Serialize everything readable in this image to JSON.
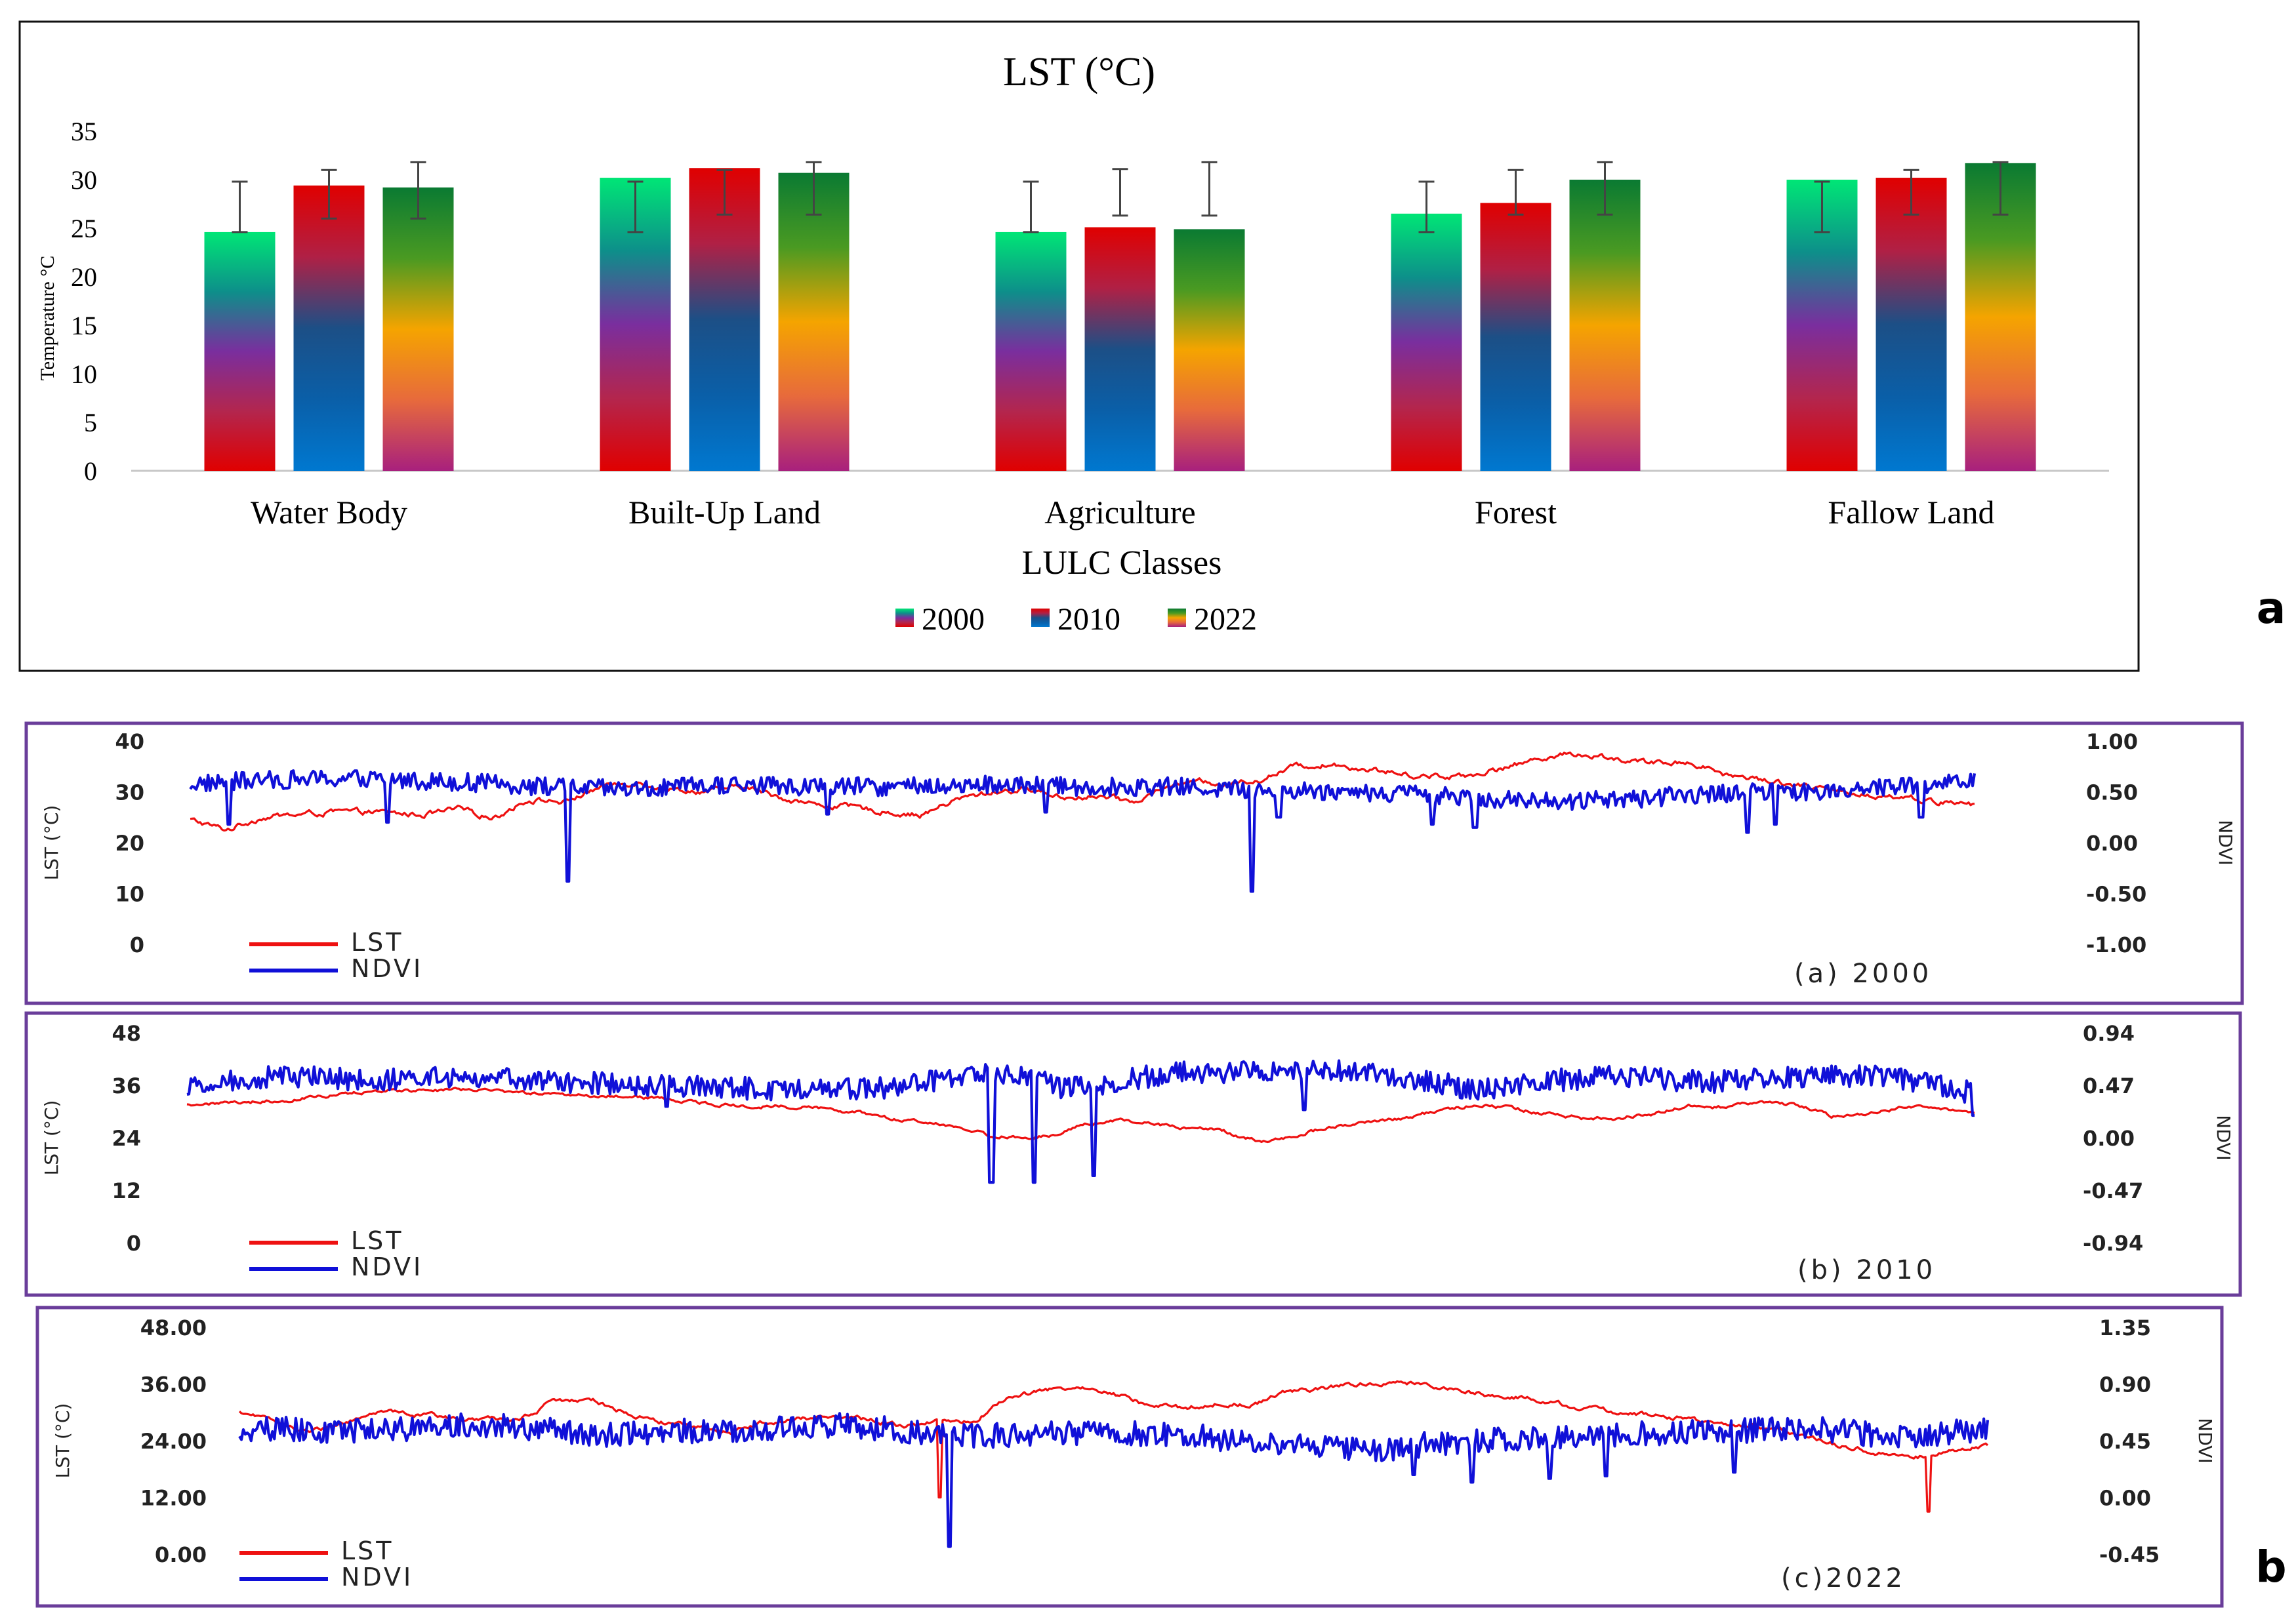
{
  "panel_labels": {
    "a": "a",
    "b": "b"
  },
  "colors": {
    "lst": "#ee1111",
    "ndvi": "#1010d8",
    "frame_b": "#6a3d9a",
    "frame_a": "#111111",
    "errorbar": "#444444"
  },
  "gradients": {
    "2000": [
      "#00e676",
      "#0d8f8a",
      "#7a2e9e",
      "#b3264e",
      "#e00000"
    ],
    "2010": [
      "#e00000",
      "#b02045",
      "#1c4f86",
      "#0a5fa8",
      "#0078d0"
    ],
    "2022": [
      "#0a7a32",
      "#4a9a22",
      "#f5a400",
      "#e76a3c",
      "#a8207d"
    ]
  },
  "chart_data": [
    {
      "id": "lst-bar",
      "type": "bar",
      "title": "LST (°C)",
      "xlabel": "LULC Classes",
      "ylabel": "Temperature °C",
      "ylim": [
        0,
        35
      ],
      "yticks": [
        0,
        5,
        10,
        15,
        20,
        25,
        30,
        35
      ],
      "categories": [
        "Water Body",
        "Built-Up Land",
        "Agriculture",
        "Forest",
        "Fallow Land"
      ],
      "legend_position": "bottom",
      "series": [
        {
          "name": "2000",
          "values": [
            24.6,
            30.2,
            24.6,
            26.5,
            30.0
          ],
          "err_low": [
            24.6,
            24.6,
            24.6,
            24.6,
            24.6
          ],
          "err_high": [
            29.8,
            29.8,
            29.8,
            29.8,
            29.8
          ]
        },
        {
          "name": "2010",
          "values": [
            29.4,
            31.2,
            25.1,
            27.6,
            30.2
          ],
          "err_low": [
            26.0,
            26.4,
            26.3,
            26.4,
            26.4
          ],
          "err_high": [
            31.0,
            31.0,
            31.1,
            31.0,
            31.0
          ]
        },
        {
          "name": "2022",
          "values": [
            29.2,
            30.7,
            24.9,
            30.0,
            31.7
          ],
          "err_low": [
            26.0,
            26.4,
            26.3,
            26.4,
            26.4
          ],
          "err_high": [
            31.8,
            31.8,
            31.8,
            31.8,
            31.8
          ]
        }
      ]
    },
    {
      "id": "ts-2000",
      "type": "line",
      "caption": "(a) 2000",
      "ylabel_left": "LST (°C)",
      "ylabel_right": "NDVI",
      "left_ticks": [
        "0",
        "10",
        "20",
        "30",
        "40"
      ],
      "right_ticks": [
        "-1.00",
        "-0.50",
        "0.00",
        "0.50",
        "1.00"
      ],
      "left_range": [
        0,
        40
      ],
      "right_range": [
        -1,
        1
      ],
      "legend": [
        "LST",
        "NDVI"
      ],
      "lst_profile": [
        [
          0,
          24.5
        ],
        [
          0.02,
          22.5
        ],
        [
          0.04,
          25.0
        ],
        [
          0.06,
          25.5
        ],
        [
          0.08,
          26.0
        ],
        [
          0.1,
          26.0
        ],
        [
          0.13,
          25.5
        ],
        [
          0.15,
          26.5
        ],
        [
          0.17,
          25.0
        ],
        [
          0.19,
          28.5
        ],
        [
          0.21,
          28.0
        ],
        [
          0.23,
          31.0
        ],
        [
          0.25,
          32.0
        ],
        [
          0.27,
          30.5
        ],
        [
          0.29,
          30.0
        ],
        [
          0.31,
          31.0
        ],
        [
          0.33,
          29.0
        ],
        [
          0.35,
          27.5
        ],
        [
          0.37,
          27.0
        ],
        [
          0.39,
          26.0
        ],
        [
          0.41,
          25.5
        ],
        [
          0.43,
          28.5
        ],
        [
          0.45,
          30.0
        ],
        [
          0.47,
          30.5
        ],
        [
          0.49,
          29.0
        ],
        [
          0.51,
          29.0
        ],
        [
          0.53,
          28.0
        ],
        [
          0.55,
          31.5
        ],
        [
          0.57,
          32.0
        ],
        [
          0.58,
          31.5
        ],
        [
          0.6,
          32.5
        ],
        [
          0.62,
          35.0
        ],
        [
          0.64,
          35.5
        ],
        [
          0.66,
          34.5
        ],
        [
          0.68,
          33.5
        ],
        [
          0.7,
          33.0
        ],
        [
          0.72,
          33.5
        ],
        [
          0.74,
          35.0
        ],
        [
          0.76,
          37.0
        ],
        [
          0.78,
          37.5
        ],
        [
          0.8,
          36.5
        ],
        [
          0.82,
          35.5
        ],
        [
          0.84,
          36.0
        ],
        [
          0.86,
          33.5
        ],
        [
          0.88,
          32.5
        ],
        [
          0.9,
          31.5
        ],
        [
          0.92,
          30.0
        ],
        [
          0.94,
          29.5
        ],
        [
          0.96,
          29.0
        ],
        [
          0.98,
          28.0
        ],
        [
          1.0,
          27.5
        ]
      ],
      "lst_noise": 1.4,
      "ndvi_profile": [
        [
          0,
          0.58
        ],
        [
          0.05,
          0.62
        ],
        [
          0.1,
          0.63
        ],
        [
          0.15,
          0.6
        ],
        [
          0.2,
          0.55
        ],
        [
          0.25,
          0.52
        ],
        [
          0.3,
          0.57
        ],
        [
          0.35,
          0.55
        ],
        [
          0.4,
          0.55
        ],
        [
          0.45,
          0.57
        ],
        [
          0.5,
          0.55
        ],
        [
          0.55,
          0.55
        ],
        [
          0.6,
          0.52
        ],
        [
          0.65,
          0.5
        ],
        [
          0.7,
          0.47
        ],
        [
          0.72,
          0.45
        ],
        [
          0.75,
          0.4
        ],
        [
          0.8,
          0.42
        ],
        [
          0.85,
          0.48
        ],
        [
          0.9,
          0.5
        ],
        [
          0.95,
          0.55
        ],
        [
          1.0,
          0.6
        ]
      ],
      "ndvi_noise": 0.09,
      "ndvi_spikes": [
        [
          0.022,
          0.18
        ],
        [
          0.111,
          0.2
        ],
        [
          0.212,
          -0.38
        ],
        [
          0.357,
          0.28
        ],
        [
          0.479,
          0.3
        ],
        [
          0.595,
          -0.48
        ],
        [
          0.61,
          0.25
        ],
        [
          0.696,
          0.18
        ],
        [
          0.72,
          0.15
        ],
        [
          0.873,
          0.1
        ],
        [
          0.888,
          0.18
        ],
        [
          0.97,
          0.25
        ]
      ]
    },
    {
      "id": "ts-2010",
      "type": "line",
      "caption": "(b) 2010",
      "ylabel_left": "LST (°C)",
      "ylabel_right": "NDVI",
      "left_ticks": [
        "0",
        "12",
        "24",
        "36",
        "48"
      ],
      "right_ticks": [
        "-0.94",
        "-0.47",
        "0.00",
        "0.47",
        "0.94"
      ],
      "left_range": [
        0,
        48
      ],
      "right_range": [
        -0.94,
        0.94
      ],
      "legend": [
        "LST",
        "NDVI"
      ],
      "lst_profile": [
        [
          0,
          31.5
        ],
        [
          0.05,
          32.5
        ],
        [
          0.1,
          34.5
        ],
        [
          0.15,
          35.0
        ],
        [
          0.2,
          34.0
        ],
        [
          0.25,
          33.5
        ],
        [
          0.3,
          31.5
        ],
        [
          0.35,
          31.0
        ],
        [
          0.38,
          29.5
        ],
        [
          0.4,
          28.0
        ],
        [
          0.43,
          26.5
        ],
        [
          0.45,
          24.5
        ],
        [
          0.47,
          24.0
        ],
        [
          0.49,
          25.0
        ],
        [
          0.5,
          27.0
        ],
        [
          0.52,
          28.0
        ],
        [
          0.54,
          27.5
        ],
        [
          0.55,
          26.5
        ],
        [
          0.57,
          26.0
        ],
        [
          0.58,
          25.5
        ],
        [
          0.6,
          23.0
        ],
        [
          0.62,
          24.5
        ],
        [
          0.64,
          26.5
        ],
        [
          0.66,
          27.5
        ],
        [
          0.68,
          28.5
        ],
        [
          0.7,
          30.0
        ],
        [
          0.72,
          31.5
        ],
        [
          0.74,
          31.0
        ],
        [
          0.76,
          29.5
        ],
        [
          0.78,
          28.5
        ],
        [
          0.8,
          28.5
        ],
        [
          0.82,
          29.5
        ],
        [
          0.84,
          31.5
        ],
        [
          0.86,
          31.0
        ],
        [
          0.88,
          32.5
        ],
        [
          0.9,
          31.5
        ],
        [
          0.92,
          29.0
        ],
        [
          0.94,
          29.5
        ],
        [
          0.96,
          31.0
        ],
        [
          0.98,
          31.0
        ],
        [
          1.0,
          29.5
        ]
      ],
      "lst_noise": 1.0,
      "ndvi_profile": [
        [
          0,
          0.45
        ],
        [
          0.05,
          0.55
        ],
        [
          0.1,
          0.52
        ],
        [
          0.15,
          0.55
        ],
        [
          0.2,
          0.5
        ],
        [
          0.25,
          0.48
        ],
        [
          0.3,
          0.45
        ],
        [
          0.35,
          0.42
        ],
        [
          0.4,
          0.45
        ],
        [
          0.43,
          0.55
        ],
        [
          0.45,
          0.6
        ],
        [
          0.47,
          0.55
        ],
        [
          0.49,
          0.45
        ],
        [
          0.52,
          0.5
        ],
        [
          0.55,
          0.58
        ],
        [
          0.6,
          0.6
        ],
        [
          0.65,
          0.6
        ],
        [
          0.7,
          0.5
        ],
        [
          0.72,
          0.42
        ],
        [
          0.75,
          0.5
        ],
        [
          0.8,
          0.55
        ],
        [
          0.85,
          0.5
        ],
        [
          0.9,
          0.55
        ],
        [
          0.95,
          0.55
        ],
        [
          1.0,
          0.4
        ]
      ],
      "ndvi_noise": 0.1,
      "ndvi_spikes": [
        [
          0.45,
          -0.4
        ],
        [
          0.474,
          -0.4
        ],
        [
          0.507,
          -0.34
        ],
        [
          0.268,
          0.28
        ],
        [
          0.625,
          0.25
        ],
        [
          0.999,
          0.2
        ]
      ]
    },
    {
      "id": "ts-2022",
      "type": "line",
      "caption": "(c)2022",
      "ylabel_left": "LST (°C)",
      "ylabel_right": "NDVI",
      "left_ticks": [
        "0.00",
        "12.00",
        "24.00",
        "36.00",
        "48.00"
      ],
      "right_ticks": [
        "-0.45",
        "0.00",
        "0.45",
        "0.90",
        "1.35"
      ],
      "left_range": [
        0,
        48
      ],
      "right_range": [
        -0.45,
        1.35
      ],
      "legend": [
        "LST",
        "NDVI"
      ],
      "lst_profile": [
        [
          0,
          30.0
        ],
        [
          0.04,
          26.0
        ],
        [
          0.08,
          30.0
        ],
        [
          0.12,
          29.0
        ],
        [
          0.16,
          28.0
        ],
        [
          0.18,
          32.5
        ],
        [
          0.2,
          33.0
        ],
        [
          0.22,
          30.0
        ],
        [
          0.24,
          28.0
        ],
        [
          0.26,
          27.0
        ],
        [
          0.28,
          25.5
        ],
        [
          0.3,
          28.0
        ],
        [
          0.32,
          28.5
        ],
        [
          0.34,
          29.0
        ],
        [
          0.36,
          28.5
        ],
        [
          0.38,
          27.0
        ],
        [
          0.4,
          28.0
        ],
        [
          0.42,
          28.0
        ],
        [
          0.44,
          33.5
        ],
        [
          0.46,
          34.5
        ],
        [
          0.48,
          35.5
        ],
        [
          0.5,
          34.0
        ],
        [
          0.52,
          31.5
        ],
        [
          0.54,
          31.0
        ],
        [
          0.56,
          32.0
        ],
        [
          0.58,
          31.5
        ],
        [
          0.6,
          34.5
        ],
        [
          0.62,
          35.0
        ],
        [
          0.64,
          36.0
        ],
        [
          0.66,
          36.5
        ],
        [
          0.68,
          35.5
        ],
        [
          0.7,
          34.5
        ],
        [
          0.72,
          33.5
        ],
        [
          0.74,
          33.0
        ],
        [
          0.76,
          31.5
        ],
        [
          0.78,
          30.5
        ],
        [
          0.8,
          29.5
        ],
        [
          0.82,
          29.0
        ],
        [
          0.84,
          28.0
        ],
        [
          0.86,
          27.5
        ],
        [
          0.88,
          26.5
        ],
        [
          0.9,
          24.5
        ],
        [
          0.92,
          22.5
        ],
        [
          0.94,
          21.5
        ],
        [
          0.96,
          20.5
        ],
        [
          0.98,
          22.0
        ],
        [
          1.0,
          23.0
        ]
      ],
      "lst_noise": 1.2,
      "ndvi_profile": [
        [
          0,
          0.55
        ],
        [
          0.05,
          0.53
        ],
        [
          0.1,
          0.55
        ],
        [
          0.15,
          0.58
        ],
        [
          0.2,
          0.5
        ],
        [
          0.25,
          0.52
        ],
        [
          0.3,
          0.55
        ],
        [
          0.35,
          0.57
        ],
        [
          0.4,
          0.5
        ],
        [
          0.42,
          0.48
        ],
        [
          0.45,
          0.5
        ],
        [
          0.5,
          0.52
        ],
        [
          0.55,
          0.48
        ],
        [
          0.6,
          0.4
        ],
        [
          0.65,
          0.38
        ],
        [
          0.7,
          0.45
        ],
        [
          0.75,
          0.48
        ],
        [
          0.8,
          0.5
        ],
        [
          0.85,
          0.52
        ],
        [
          0.9,
          0.55
        ],
        [
          0.95,
          0.48
        ],
        [
          1.0,
          0.55
        ]
      ],
      "ndvi_noise": 0.1,
      "ndvi_spikes": [
        [
          0.406,
          -0.39
        ],
        [
          0.672,
          0.18
        ],
        [
          0.705,
          0.12
        ],
        [
          0.749,
          0.15
        ],
        [
          0.782,
          0.17
        ],
        [
          0.855,
          0.2
        ]
      ],
      "lst_spikes": [
        [
          0.401,
          12.0
        ],
        [
          0.966,
          9.0
        ]
      ]
    }
  ]
}
